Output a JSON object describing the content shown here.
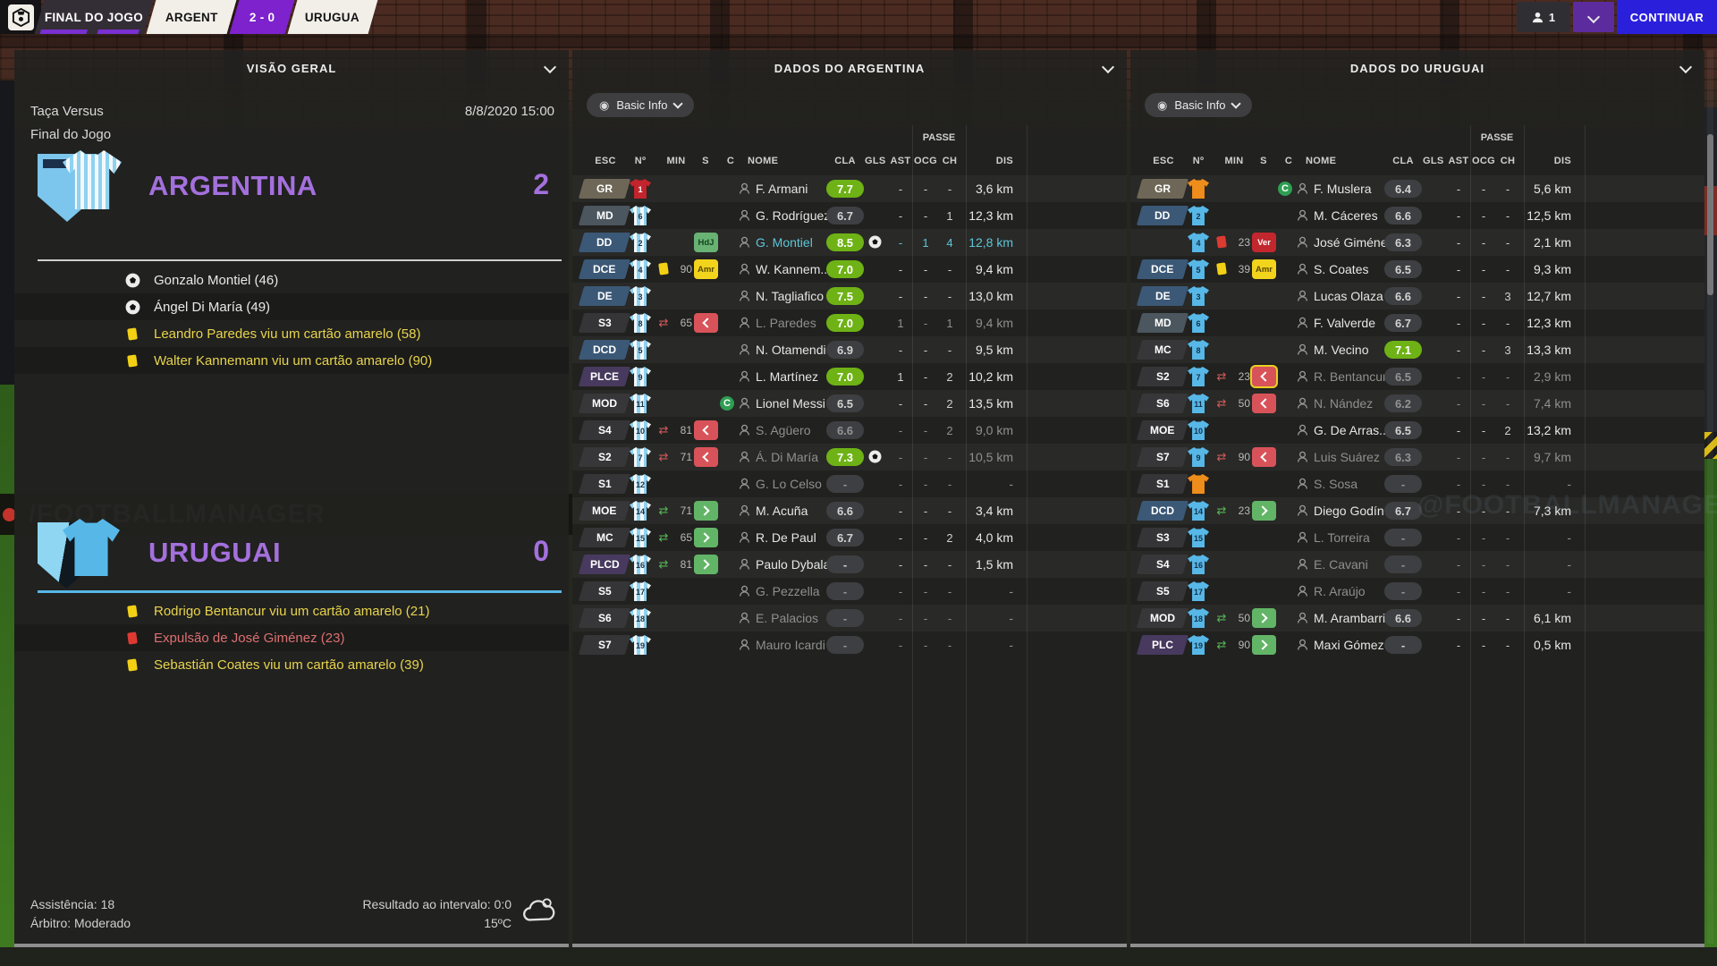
{
  "top_bar": {
    "match_status": "FINAL DO JOGO",
    "home_abbr": "ARGENT",
    "score": "2 - 0",
    "away_abbr": "URUGUA",
    "players_count": "1",
    "continue_label": "CONTINUAR"
  },
  "watermarks": {
    "board": "/FOOTBALLMANAGER",
    "twitter": "@FOOTBALLMANAGER"
  },
  "overview": {
    "title": "VISÃO GERAL",
    "competition": "Taça Versus",
    "datetime": "8/8/2020 15:00",
    "stage": "Final do Jogo",
    "home": {
      "name": "ARGENTINA",
      "score": "2",
      "events": [
        {
          "type": "goal",
          "text": "Gonzalo Montiel (46)"
        },
        {
          "type": "goal",
          "text": "Ángel Di María (49)"
        },
        {
          "type": "yellow",
          "text": "Leandro Paredes viu um cartão amarelo (58)"
        },
        {
          "type": "yellow",
          "text": "Walter Kannemann viu um cartão amarelo (90)"
        }
      ]
    },
    "away": {
      "name": "URUGUAI",
      "score": "0",
      "events": [
        {
          "type": "yellow",
          "text": "Rodrigo Bentancur viu um cartão amarelo (21)"
        },
        {
          "type": "red",
          "text": "Expulsão de José Giménez (23)"
        },
        {
          "type": "yellow",
          "text": "Sebastián Coates viu um cartão amarelo (39)"
        }
      ]
    },
    "footer": {
      "attendance": "Assistência: 18",
      "referee": "Árbitro: Moderado",
      "half_time": "Resultado ao intervalo: 0:0",
      "temperature": "15ºC"
    }
  },
  "argentina_panel": {
    "title": "DADOS DO ARGENTINA",
    "filter_label": "Basic Info",
    "group_header": "PASSE",
    "columns": [
      "ESC",
      "Nº",
      "MIN",
      "S",
      "C",
      "NOME",
      "CLA",
      "GLS",
      "AST",
      "OCG",
      "CH",
      "DIS"
    ],
    "rows": [
      {
        "pos": "GR",
        "pc": "gk",
        "shirt": "gkr",
        "num": "1",
        "icon": "",
        "min": "",
        "slot": "",
        "cap": false,
        "name": "F. Armani",
        "cla": "7.7",
        "cs": "green",
        "gls": false,
        "ast": "-",
        "ocg": "-",
        "ch": "-",
        "dis": "3,6 km",
        "dim": false,
        "hl": false,
        "carded": false
      },
      {
        "pos": "MD",
        "pc": "md",
        "shirt": "ar",
        "num": "6",
        "icon": "",
        "min": "",
        "slot": "",
        "cap": false,
        "name": "G. Rodríguez",
        "cla": "6.7",
        "cs": "gray",
        "gls": false,
        "ast": "-",
        "ocg": "-",
        "ch": "1",
        "dis": "12,3 km",
        "dim": false,
        "hl": false,
        "carded": false
      },
      {
        "pos": "DD",
        "pc": "def",
        "shirt": "ar",
        "num": "2",
        "icon": "",
        "min": "",
        "slot": "HdJ",
        "cap": false,
        "name": "G. Montiel",
        "cla": "8.5",
        "cs": "green",
        "gls": true,
        "ast": "-",
        "ocg": "1",
        "ch": "4",
        "dis": "12,8 km",
        "dim": false,
        "hl": true,
        "carded": false
      },
      {
        "pos": "DCE",
        "pc": "def",
        "shirt": "ar",
        "num": "4",
        "icon": "yellow",
        "min": "90",
        "slot": "Amr",
        "cap": false,
        "name": "W. Kannem...",
        "cla": "7.0",
        "cs": "green",
        "gls": false,
        "ast": "-",
        "ocg": "-",
        "ch": "-",
        "dis": "9,4 km",
        "dim": false,
        "hl": false,
        "carded": false
      },
      {
        "pos": "DE",
        "pc": "def",
        "shirt": "ar",
        "num": "3",
        "icon": "",
        "min": "",
        "slot": "",
        "cap": false,
        "name": "N. Tagliafico",
        "cla": "7.5",
        "cs": "green",
        "gls": false,
        "ast": "-",
        "ocg": "-",
        "ch": "-",
        "dis": "13,0 km",
        "dim": false,
        "hl": false,
        "carded": false
      },
      {
        "pos": "S3",
        "pc": "sub",
        "shirt": "ar",
        "num": "8",
        "icon": "out",
        "min": "65",
        "slot": "out",
        "cap": false,
        "name": "L. Paredes",
        "cla": "7.0",
        "cs": "green",
        "gls": false,
        "ast": "1",
        "ocg": "-",
        "ch": "1",
        "dis": "9,4 km",
        "dim": true,
        "hl": false,
        "carded": false
      },
      {
        "pos": "DCD",
        "pc": "def",
        "shirt": "ar",
        "num": "5",
        "icon": "",
        "min": "",
        "slot": "",
        "cap": false,
        "name": "N. Otamendi",
        "cla": "6.9",
        "cs": "gray",
        "gls": false,
        "ast": "-",
        "ocg": "-",
        "ch": "-",
        "dis": "9,5 km",
        "dim": false,
        "hl": false,
        "carded": false
      },
      {
        "pos": "PLCE",
        "pc": "st",
        "shirt": "ar",
        "num": "9",
        "icon": "",
        "min": "",
        "slot": "",
        "cap": false,
        "name": "L. Martínez",
        "cla": "7.0",
        "cs": "green",
        "gls": false,
        "ast": "1",
        "ocg": "-",
        "ch": "2",
        "dis": "10,2 km",
        "dim": false,
        "hl": false,
        "carded": false
      },
      {
        "pos": "MOD",
        "pc": "sub",
        "shirt": "ar",
        "num": "11",
        "icon": "",
        "min": "",
        "slot": "",
        "cap": true,
        "name": "Lionel Messi",
        "cla": "6.5",
        "cs": "gray",
        "gls": false,
        "ast": "-",
        "ocg": "-",
        "ch": "2",
        "dis": "13,5 km",
        "dim": false,
        "hl": false,
        "carded": false
      },
      {
        "pos": "S4",
        "pc": "sub",
        "shirt": "ar",
        "num": "10",
        "icon": "out",
        "min": "81",
        "slot": "out",
        "cap": false,
        "name": "S. Agüero",
        "cla": "6.6",
        "cs": "gray",
        "gls": false,
        "ast": "-",
        "ocg": "-",
        "ch": "2",
        "dis": "9,0 km",
        "dim": true,
        "hl": false,
        "carded": false
      },
      {
        "pos": "S2",
        "pc": "sub",
        "shirt": "ar",
        "num": "7",
        "icon": "out",
        "min": "71",
        "slot": "out",
        "cap": false,
        "name": "Á. Di María",
        "cla": "7.3",
        "cs": "green",
        "gls": true,
        "ast": "-",
        "ocg": "-",
        "ch": "-",
        "dis": "10,5 km",
        "dim": true,
        "hl": false,
        "carded": false
      },
      {
        "pos": "S1",
        "pc": "sub",
        "shirt": "ar",
        "num": "12",
        "icon": "",
        "min": "",
        "slot": "",
        "cap": false,
        "name": "G. Lo Celso",
        "cla": "-",
        "cs": "gray",
        "gls": false,
        "ast": "-",
        "ocg": "-",
        "ch": "-",
        "dis": "-",
        "dim": true,
        "hl": false,
        "carded": false
      },
      {
        "pos": "MOE",
        "pc": "sub",
        "shirt": "ar",
        "num": "14",
        "icon": "in",
        "min": "71",
        "slot": "in",
        "cap": false,
        "name": "M. Acuña",
        "cla": "6.6",
        "cs": "gray",
        "gls": false,
        "ast": "-",
        "ocg": "-",
        "ch": "-",
        "dis": "3,4 km",
        "dim": false,
        "hl": false,
        "carded": false
      },
      {
        "pos": "MC",
        "pc": "sub",
        "shirt": "ar",
        "num": "15",
        "icon": "in",
        "min": "65",
        "slot": "in",
        "cap": false,
        "name": "R. De Paul",
        "cla": "6.7",
        "cs": "gray",
        "gls": false,
        "ast": "-",
        "ocg": "-",
        "ch": "2",
        "dis": "4,0 km",
        "dim": false,
        "hl": false,
        "carded": false
      },
      {
        "pos": "PLCD",
        "pc": "st",
        "shirt": "ar",
        "num": "16",
        "icon": "in",
        "min": "81",
        "slot": "in",
        "cap": false,
        "name": "Paulo Dybala",
        "cla": "-",
        "cs": "gray",
        "gls": false,
        "ast": "-",
        "ocg": "-",
        "ch": "-",
        "dis": "1,5 km",
        "dim": false,
        "hl": false,
        "carded": false
      },
      {
        "pos": "S5",
        "pc": "sub",
        "shirt": "ar",
        "num": "17",
        "icon": "",
        "min": "",
        "slot": "",
        "cap": false,
        "name": "G. Pezzella",
        "cla": "-",
        "cs": "gray",
        "gls": false,
        "ast": "-",
        "ocg": "-",
        "ch": "-",
        "dis": "-",
        "dim": true,
        "hl": false,
        "carded": false
      },
      {
        "pos": "S6",
        "pc": "sub",
        "shirt": "ar",
        "num": "18",
        "icon": "",
        "min": "",
        "slot": "",
        "cap": false,
        "name": "E. Palacios",
        "cla": "-",
        "cs": "gray",
        "gls": false,
        "ast": "-",
        "ocg": "-",
        "ch": "-",
        "dis": "-",
        "dim": true,
        "hl": false,
        "carded": false
      },
      {
        "pos": "S7",
        "pc": "sub",
        "shirt": "ar",
        "num": "19",
        "icon": "",
        "min": "",
        "slot": "",
        "cap": false,
        "name": "Mauro Icardi",
        "cla": "-",
        "cs": "gray",
        "gls": false,
        "ast": "-",
        "ocg": "-",
        "ch": "-",
        "dis": "-",
        "dim": true,
        "hl": false,
        "carded": false
      }
    ]
  },
  "uruguay_panel": {
    "title": "DADOS DO URUGUAI",
    "filter_label": "Basic Info",
    "group_header": "PASSE",
    "columns": [
      "ESC",
      "Nº",
      "MIN",
      "S",
      "C",
      "NOME",
      "CLA",
      "GLS",
      "AST",
      "OCG",
      "CH",
      "DIS"
    ],
    "rows": [
      {
        "pos": "GR",
        "pc": "gk",
        "shirt": "gko",
        "num": "",
        "icon": "",
        "min": "",
        "slot": "",
        "cap": true,
        "name": "F. Muslera",
        "cla": "6.4",
        "cs": "gray",
        "gls": false,
        "ast": "-",
        "ocg": "-",
        "ch": "-",
        "dis": "5,6 km",
        "dim": false,
        "hl": false,
        "carded": false
      },
      {
        "pos": "DD",
        "pc": "def",
        "shirt": "uy",
        "num": "2",
        "icon": "",
        "min": "",
        "slot": "",
        "cap": false,
        "name": "M. Cáceres",
        "cla": "6.6",
        "cs": "gray",
        "gls": false,
        "ast": "-",
        "ocg": "-",
        "ch": "-",
        "dis": "12,5 km",
        "dim": false,
        "hl": false,
        "carded": false
      },
      {
        "pos": "",
        "pc": "",
        "shirt": "uy",
        "num": "4",
        "icon": "red",
        "min": "23",
        "slot": "Ver",
        "cap": false,
        "name": "José Giménez",
        "cla": "6.3",
        "cs": "gray",
        "gls": false,
        "ast": "-",
        "ocg": "-",
        "ch": "-",
        "dis": "2,1 km",
        "dim": false,
        "hl": false,
        "carded": false
      },
      {
        "pos": "DCE",
        "pc": "def",
        "shirt": "uy",
        "num": "5",
        "icon": "yellow",
        "min": "39",
        "slot": "Amr",
        "cap": false,
        "name": "S. Coates",
        "cla": "6.5",
        "cs": "gray",
        "gls": false,
        "ast": "-",
        "ocg": "-",
        "ch": "-",
        "dis": "9,3 km",
        "dim": false,
        "hl": false,
        "carded": false
      },
      {
        "pos": "DE",
        "pc": "def",
        "shirt": "uy",
        "num": "3",
        "icon": "",
        "min": "",
        "slot": "",
        "cap": false,
        "name": "Lucas Olaza",
        "cla": "6.6",
        "cs": "gray",
        "gls": false,
        "ast": "-",
        "ocg": "-",
        "ch": "3",
        "dis": "12,7 km",
        "dim": false,
        "hl": false,
        "carded": false
      },
      {
        "pos": "MD",
        "pc": "md",
        "shirt": "uy",
        "num": "6",
        "icon": "",
        "min": "",
        "slot": "",
        "cap": false,
        "name": "F. Valverde",
        "cla": "6.7",
        "cs": "gray",
        "gls": false,
        "ast": "-",
        "ocg": "-",
        "ch": "-",
        "dis": "12,3 km",
        "dim": false,
        "hl": false,
        "carded": false
      },
      {
        "pos": "MC",
        "pc": "sub",
        "shirt": "uy",
        "num": "8",
        "icon": "",
        "min": "",
        "slot": "",
        "cap": false,
        "name": "M. Vecino",
        "cla": "7.1",
        "cs": "green",
        "gls": false,
        "ast": "-",
        "ocg": "-",
        "ch": "3",
        "dis": "13,3 km",
        "dim": false,
        "hl": false,
        "carded": false
      },
      {
        "pos": "S2",
        "pc": "sub",
        "shirt": "uy",
        "num": "7",
        "icon": "out",
        "min": "23",
        "slot": "out",
        "cap": false,
        "name": "R. Bentancur",
        "cla": "6.5",
        "cs": "gray",
        "gls": false,
        "ast": "-",
        "ocg": "-",
        "ch": "-",
        "dis": "2,9 km",
        "dim": true,
        "hl": false,
        "carded": true
      },
      {
        "pos": "S6",
        "pc": "sub",
        "shirt": "uy",
        "num": "11",
        "icon": "out",
        "min": "50",
        "slot": "out",
        "cap": false,
        "name": "N. Nández",
        "cla": "6.2",
        "cs": "gray",
        "gls": false,
        "ast": "-",
        "ocg": "-",
        "ch": "-",
        "dis": "7,4 km",
        "dim": true,
        "hl": false,
        "carded": false
      },
      {
        "pos": "MOE",
        "pc": "sub",
        "shirt": "uy",
        "num": "10",
        "icon": "",
        "min": "",
        "slot": "",
        "cap": false,
        "name": "G. De Arras...",
        "cla": "6.5",
        "cs": "gray",
        "gls": false,
        "ast": "-",
        "ocg": "-",
        "ch": "2",
        "dis": "13,2 km",
        "dim": false,
        "hl": false,
        "carded": false
      },
      {
        "pos": "S7",
        "pc": "sub",
        "shirt": "uy",
        "num": "9",
        "icon": "out",
        "min": "90",
        "slot": "out",
        "cap": false,
        "name": "Luis Suárez",
        "cla": "6.3",
        "cs": "gray",
        "gls": false,
        "ast": "-",
        "ocg": "-",
        "ch": "-",
        "dis": "9,7 km",
        "dim": true,
        "hl": false,
        "carded": false
      },
      {
        "pos": "S1",
        "pc": "sub",
        "shirt": "gko",
        "num": "",
        "icon": "",
        "min": "",
        "slot": "",
        "cap": false,
        "name": "S. Sosa",
        "cla": "-",
        "cs": "gray",
        "gls": false,
        "ast": "-",
        "ocg": "-",
        "ch": "-",
        "dis": "-",
        "dim": true,
        "hl": false,
        "carded": false
      },
      {
        "pos": "DCD",
        "pc": "def",
        "shirt": "uy",
        "num": "14",
        "icon": "in",
        "min": "23",
        "slot": "in",
        "cap": false,
        "name": "Diego Godín",
        "cla": "6.7",
        "cs": "gray",
        "gls": false,
        "ast": "-",
        "ocg": "-",
        "ch": "-",
        "dis": "7,3 km",
        "dim": false,
        "hl": false,
        "carded": false
      },
      {
        "pos": "S3",
        "pc": "sub",
        "shirt": "uy",
        "num": "15",
        "icon": "",
        "min": "",
        "slot": "",
        "cap": false,
        "name": "L. Torreira",
        "cla": "-",
        "cs": "gray",
        "gls": false,
        "ast": "-",
        "ocg": "-",
        "ch": "-",
        "dis": "-",
        "dim": true,
        "hl": false,
        "carded": false
      },
      {
        "pos": "S4",
        "pc": "sub",
        "shirt": "uy",
        "num": "16",
        "icon": "",
        "min": "",
        "slot": "",
        "cap": false,
        "name": "E. Cavani",
        "cla": "-",
        "cs": "gray",
        "gls": false,
        "ast": "-",
        "ocg": "-",
        "ch": "-",
        "dis": "-",
        "dim": true,
        "hl": false,
        "carded": false
      },
      {
        "pos": "S5",
        "pc": "sub",
        "shirt": "uy",
        "num": "17",
        "icon": "",
        "min": "",
        "slot": "",
        "cap": false,
        "name": "R. Araújo",
        "cla": "-",
        "cs": "gray",
        "gls": false,
        "ast": "-",
        "ocg": "-",
        "ch": "-",
        "dis": "-",
        "dim": true,
        "hl": false,
        "carded": false
      },
      {
        "pos": "MOD",
        "pc": "sub",
        "shirt": "uy",
        "num": "18",
        "icon": "in",
        "min": "50",
        "slot": "in",
        "cap": false,
        "name": "M. Arambarri",
        "cla": "6.6",
        "cs": "gray",
        "gls": false,
        "ast": "-",
        "ocg": "-",
        "ch": "-",
        "dis": "6,1 km",
        "dim": false,
        "hl": false,
        "carded": false
      },
      {
        "pos": "PLC",
        "pc": "st",
        "shirt": "uy",
        "num": "19",
        "icon": "in",
        "min": "90",
        "slot": "in",
        "cap": false,
        "name": "Maxi Gómez",
        "cla": "-",
        "cs": "gray",
        "gls": false,
        "ast": "-",
        "ocg": "-",
        "ch": "-",
        "dis": "0,5 km",
        "dim": false,
        "hl": false,
        "carded": false
      }
    ]
  }
}
